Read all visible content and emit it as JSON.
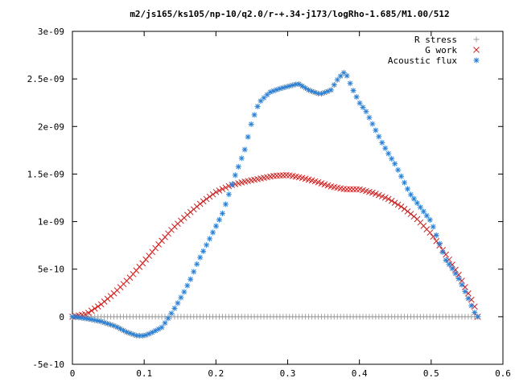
{
  "chart_data": {
    "type": "scatter",
    "title": "m2/js165/ks105/np-10/q2.0/r-+.34-j173/logRho-1.685/M1.00/512",
    "xlabel": "",
    "ylabel": "",
    "xlim": [
      0,
      0.6
    ],
    "ylim": [
      -5e-10,
      3e-09
    ],
    "grid": false,
    "legend_position": "top-right",
    "x_ticks": [
      {
        "value": 0,
        "label": "0"
      },
      {
        "value": 0.1,
        "label": "0.1"
      },
      {
        "value": 0.2,
        "label": "0.2"
      },
      {
        "value": 0.3,
        "label": "0.3"
      },
      {
        "value": 0.4,
        "label": "0.4"
      },
      {
        "value": 0.5,
        "label": "0.5"
      },
      {
        "value": 0.6,
        "label": "0.6"
      }
    ],
    "y_ticks": [
      {
        "value": -5e-10,
        "label": "-5e-10"
      },
      {
        "value": 0,
        "label": "0"
      },
      {
        "value": 5e-10,
        "label": "5e-10"
      },
      {
        "value": 1e-09,
        "label": "1e-09"
      },
      {
        "value": 1.5e-09,
        "label": "1.5e-09"
      },
      {
        "value": 2e-09,
        "label": "2e-09"
      },
      {
        "value": 2.5e-09,
        "label": "2.5e-09"
      },
      {
        "value": 3e-09,
        "label": "3e-09"
      }
    ],
    "x_range": [
      0,
      0.565
    ],
    "n_points": 128,
    "series": [
      {
        "name": "R stress",
        "marker": "plus",
        "color": "#a0a0a0",
        "points": [
          [
            0.0,
            0.0
          ],
          [
            0.565,
            0.0
          ]
        ]
      },
      {
        "name": "G work",
        "marker": "cross",
        "color": "#d02020",
        "points": [
          [
            0.0,
            0.0
          ],
          [
            0.02,
            3e-11
          ],
          [
            0.04,
            1.3e-10
          ],
          [
            0.06,
            2.6e-10
          ],
          [
            0.08,
            4.1e-10
          ],
          [
            0.1,
            5.8e-10
          ],
          [
            0.12,
            7.6e-10
          ],
          [
            0.14,
            9.3e-10
          ],
          [
            0.16,
            1.07e-09
          ],
          [
            0.18,
            1.2e-09
          ],
          [
            0.2,
            1.31e-09
          ],
          [
            0.22,
            1.38e-09
          ],
          [
            0.24,
            1.42e-09
          ],
          [
            0.26,
            1.45e-09
          ],
          [
            0.28,
            1.48e-09
          ],
          [
            0.3,
            1.49e-09
          ],
          [
            0.32,
            1.46e-09
          ],
          [
            0.34,
            1.42e-09
          ],
          [
            0.36,
            1.37e-09
          ],
          [
            0.38,
            1.34e-09
          ],
          [
            0.4,
            1.34e-09
          ],
          [
            0.42,
            1.3e-09
          ],
          [
            0.44,
            1.24e-09
          ],
          [
            0.46,
            1.15e-09
          ],
          [
            0.48,
            1.03e-09
          ],
          [
            0.5,
            8.7e-10
          ],
          [
            0.52,
            6.6e-10
          ],
          [
            0.54,
            4.2e-10
          ],
          [
            0.56,
            1.2e-10
          ],
          [
            0.565,
            0.0
          ]
        ]
      },
      {
        "name": "Acoustic flux",
        "marker": "star",
        "color": "#2a7fd4",
        "points": [
          [
            0.0,
            0.0
          ],
          [
            0.02,
            -2e-11
          ],
          [
            0.04,
            -5e-11
          ],
          [
            0.06,
            -1e-10
          ],
          [
            0.075,
            -1.6e-10
          ],
          [
            0.09,
            -2e-10
          ],
          [
            0.1,
            -2e-10
          ],
          [
            0.11,
            -1.7e-10
          ],
          [
            0.125,
            -1.1e-10
          ],
          [
            0.135,
            0.0
          ],
          [
            0.145,
            1.2e-10
          ],
          [
            0.155,
            2.5e-10
          ],
          [
            0.165,
            4e-10
          ],
          [
            0.175,
            5.8e-10
          ],
          [
            0.19,
            8e-10
          ],
          [
            0.2,
            9.5e-10
          ],
          [
            0.21,
            1.1e-09
          ],
          [
            0.225,
            1.45e-09
          ],
          [
            0.24,
            1.75e-09
          ],
          [
            0.25,
            2.05e-09
          ],
          [
            0.26,
            2.25e-09
          ],
          [
            0.275,
            2.36e-09
          ],
          [
            0.29,
            2.4e-09
          ],
          [
            0.305,
            2.43e-09
          ],
          [
            0.315,
            2.45e-09
          ],
          [
            0.33,
            2.38e-09
          ],
          [
            0.345,
            2.34e-09
          ],
          [
            0.36,
            2.38e-09
          ],
          [
            0.37,
            2.5e-09
          ],
          [
            0.38,
            2.58e-09
          ],
          [
            0.39,
            2.4e-09
          ],
          [
            0.4,
            2.25e-09
          ],
          [
            0.41,
            2.15e-09
          ],
          [
            0.42,
            2e-09
          ],
          [
            0.43,
            1.85e-09
          ],
          [
            0.44,
            1.72e-09
          ],
          [
            0.45,
            1.6e-09
          ],
          [
            0.46,
            1.45e-09
          ],
          [
            0.47,
            1.3e-09
          ],
          [
            0.48,
            1.2e-09
          ],
          [
            0.49,
            1.1e-09
          ],
          [
            0.5,
            1e-09
          ],
          [
            0.51,
            8e-10
          ],
          [
            0.52,
            6e-10
          ],
          [
            0.53,
            5e-10
          ],
          [
            0.54,
            3.8e-10
          ],
          [
            0.55,
            2.2e-10
          ],
          [
            0.56,
            5e-11
          ],
          [
            0.565,
            0.0
          ]
        ]
      }
    ]
  }
}
